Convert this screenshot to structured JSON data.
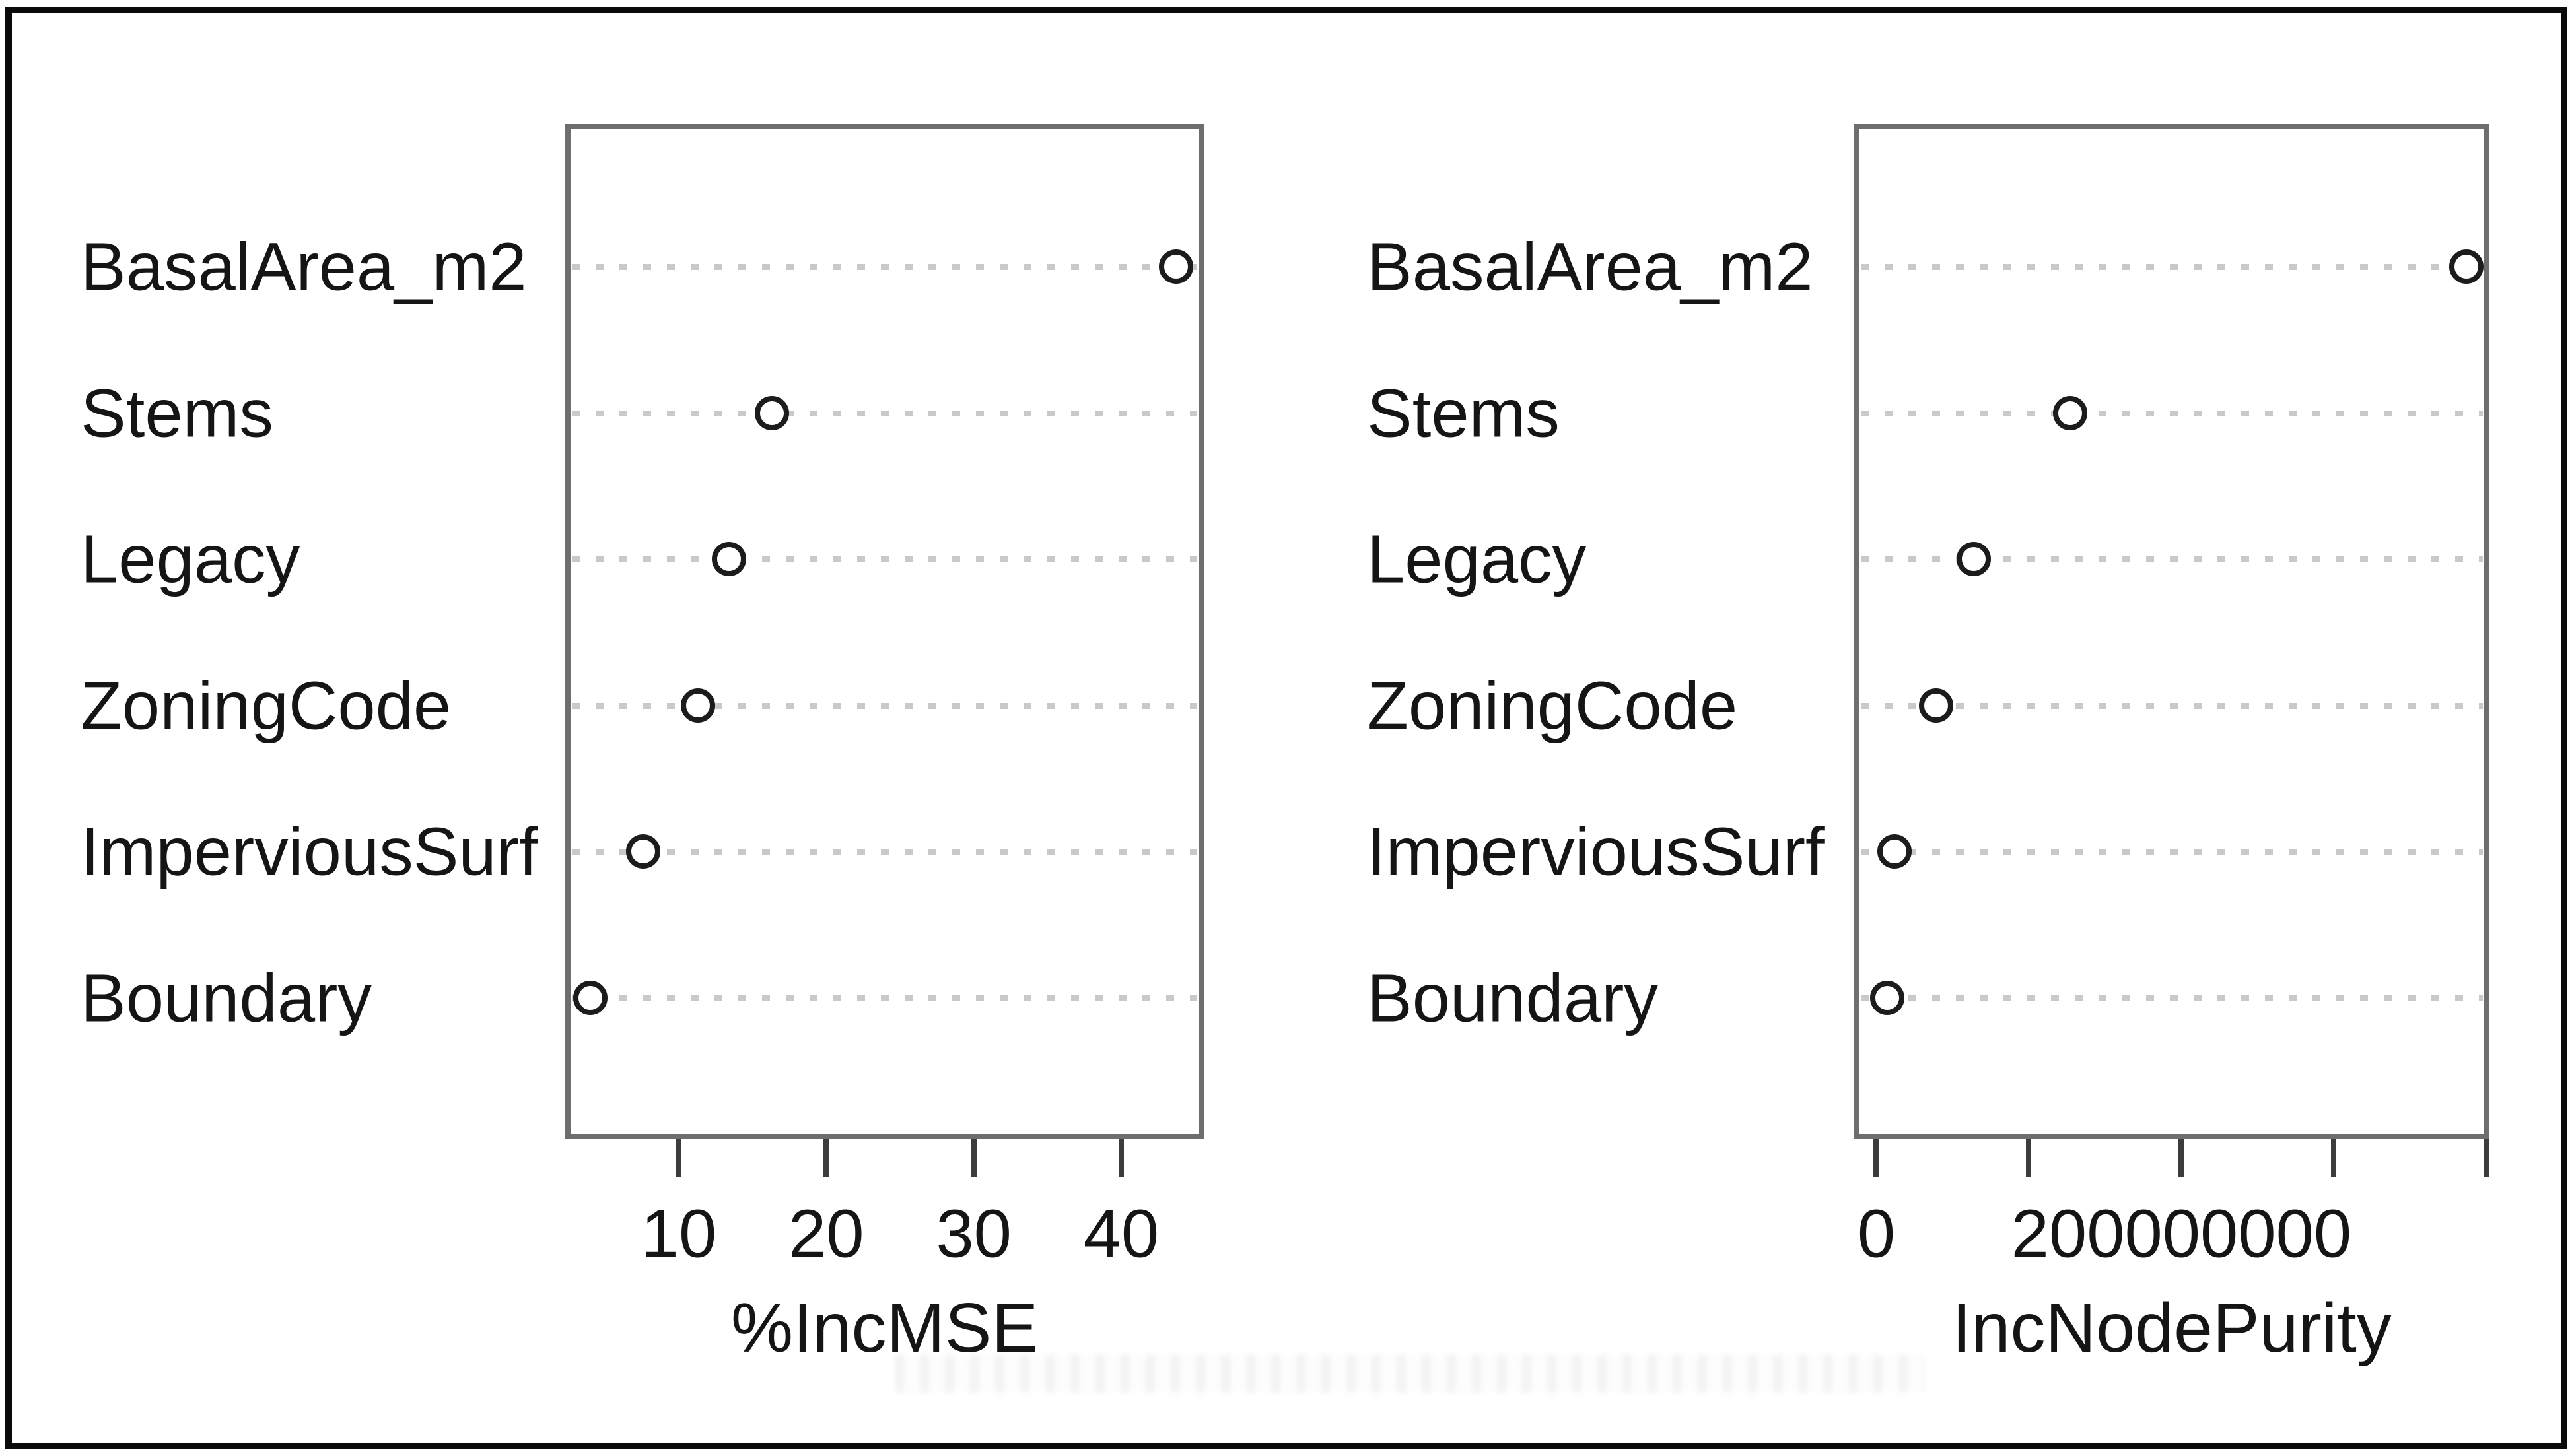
{
  "figure": {
    "description": "Random forest variable importance dot plots, two panels",
    "appearance": {
      "background_color": "#ffffff",
      "outer_border_color": "#0a0a0a",
      "plot_box_border_color": "#6e6e6e",
      "gridline_color": "#c9c9c9",
      "point_outline_color": "#1c1c1c",
      "point_fill_color": "#ffffff",
      "text_color": "#151515",
      "tick_color": "#3c3c3c"
    }
  },
  "chart_data": [
    {
      "type": "scatter",
      "subtype": "dotchart",
      "title": "",
      "xlabel": "%IncMSE",
      "ylabel": "",
      "categories": [
        "BasalArea_m2",
        "Stems",
        "Legacy",
        "ZoningCode",
        "ImperviousSurf",
        "Boundary"
      ],
      "values": [
        43.7,
        16.3,
        13.4,
        11.3,
        7.6,
        4.0
      ],
      "xlim": [
        2.3,
        45.6
      ],
      "xticks": [
        {
          "value": 10,
          "label": "10"
        },
        {
          "value": 20,
          "label": "20"
        },
        {
          "value": 30,
          "label": "30"
        },
        {
          "value": 40,
          "label": "40"
        }
      ],
      "grid": "dotted horizontal row guides",
      "legend": "none"
    },
    {
      "type": "scatter",
      "subtype": "dotchart",
      "title": "",
      "xlabel": "IncNodePurity",
      "ylabel": "",
      "categories": [
        "BasalArea_m2",
        "Stems",
        "Legacy",
        "ZoningCode",
        "ImperviousSurf",
        "Boundary"
      ],
      "values": [
        387000000,
        127000000,
        64000000,
        39000000,
        12000000,
        7000000
      ],
      "xlim": [
        -14500000,
        402000000
      ],
      "xticks": [
        {
          "value": 0,
          "label": "0"
        },
        {
          "value": 100000000,
          "label": ""
        },
        {
          "value": 200000000,
          "label": "200000000"
        },
        {
          "value": 300000000,
          "label": ""
        },
        {
          "value": 400000000,
          "label": ""
        }
      ],
      "grid": "dotted horizontal row guides",
      "legend": "none"
    }
  ]
}
